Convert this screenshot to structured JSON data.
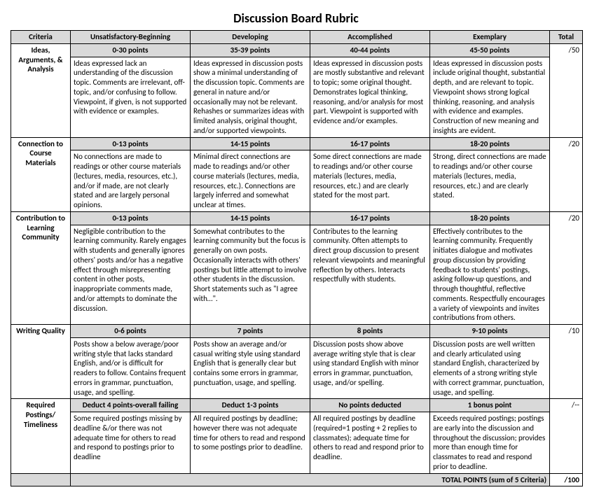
{
  "title": "Discussion Board Rubric",
  "headers": {
    "criteria": "Criteria",
    "l1": "Unsatisfactory-Beginning",
    "l2": "Developing",
    "l3": "Accomplished",
    "l4": "Exemplary",
    "total": "Total"
  },
  "rows": [
    {
      "criteria": "Ideas, Arguments, & Analysis",
      "pts": {
        "l1": "0-30 points",
        "l2": "35-39 points",
        "l3": "40-44 points",
        "l4": "45-50 points"
      },
      "desc": {
        "l1": "Ideas expressed lack an understanding of the discussion topic. Comments are irrelevant, off-topic, and/or confusing to follow. Viewpoint, if given, is not supported with evidence or examples.",
        "l2": "Ideas expressed in discussion posts show a minimal understanding of the discussion topic. Comments are general in nature and/or occasionally may not be relevant. Rehashes or summarizes ideas with limited analysis, original thought, and/or supported viewpoints.",
        "l3": "Ideas expressed in discussion posts are mostly substantive and relevant to topic; some original thought. Demonstrates logical thinking, reasoning, and/or analysis for most part. Viewpoint is supported with evidence and/or examples.",
        "l4": "Ideas expressed in discussion posts include original thought, substantial depth, and are relevant to topic. Viewpoint shows strong logical thinking, reasoning, and analysis with evidence and examples. Construction of new meaning and insights are evident."
      },
      "total": "/50"
    },
    {
      "criteria": "Connection to Course Materials",
      "pts": {
        "l1": "0-13 points",
        "l2": "14-15 points",
        "l3": "16-17 points",
        "l4": "18-20 points"
      },
      "desc": {
        "l1": "No connections are made to readings or other course materials (lectures, media, resources, etc.), and/or if made, are not clearly stated and are largely personal opinions.",
        "l2": "Minimal direct connections are made to readings and/or other course materials (lectures, media, resources, etc.). Connections are largely inferred and somewhat unclear at times.",
        "l3": "Some direct connections are made to readings and/or other course materials (lectures, media, resources, etc.) and are clearly stated for the most part.",
        "l4": "Strong, direct connections are made to readings and/or other course materials (lectures, media, resources, etc.) and are clearly stated."
      },
      "total": "/20"
    },
    {
      "criteria": "Contribution to Learning Community",
      "pts": {
        "l1": "0-13 points",
        "l2": "14-15 points",
        "l3": "16-17 points",
        "l4": "18-20 points"
      },
      "desc": {
        "l1": "Negligible contribution to the learning community. Rarely engages with students and generally ignores others' posts and/or has a negative effect through misrepresenting content in other posts, inappropriate comments made, and/or attempts to dominate the discussion.",
        "l2": "Somewhat contributes to the learning community but the focus is generally on own posts. Occasionally interacts with others' postings but little attempt to involve other students in the discussion. Short statements such as \"I agree with…\".",
        "l3": "Contributes to the learning community. Often attempts to direct group discussion to present relevant viewpoints and meaningful reflection by others. Interacts respectfully with students.",
        "l4": "Effectively contributes to the learning community. Frequently initiates dialogue and motivates group discussion by providing feedback to students' postings, asking follow-up questions, and through thoughtful, reflective comments. Respectfully encourages a variety of viewpoints and invites contributions from others."
      },
      "total": "/20"
    },
    {
      "criteria": "Writing Quality",
      "pts": {
        "l1": "0-6  points",
        "l2": "7 points",
        "l3": "8 points",
        "l4": "9-10 points"
      },
      "desc": {
        "l1": "Posts show a below average/poor writing style that lacks standard English, and/or is difficult for readers to follow. Contains frequent errors in grammar, punctuation, usage, and spelling.",
        "l2": "Posts show an average and/or casual writing style using standard English that is generally clear but contains some errors in grammar, punctuation, usage, and spelling.",
        "l3": "Discussion posts show above average writing style that is clear using standard English with minor errors in grammar, punctuation, usage, and/or spelling.",
        "l4": "Discussion posts are well written and clearly articulated using standard English, characterized by elements of a strong writing style with correct grammar, punctuation, usage, and spelling."
      },
      "total": "/10"
    },
    {
      "criteria": "Required Postings/ Timeliness",
      "pts": {
        "l1": "Deduct 4 points-overall failing",
        "l2": "Deduct 1-3 points",
        "l3": "No points deducted",
        "l4": "1 bonus point"
      },
      "desc": {
        "l1": "Some required postings missing by deadline &/or there was not adequate time for others to read and respond to postings prior to deadline",
        "l2": "All required postings by deadline; however there was not adequate time for others to read and respond to some postings prior to deadline.",
        "l3": "All required postings by deadline (required=1 posting + 2 replies to classmates); adequate time for others to read and respond prior to deadline.",
        "l4": "Exceeds required postings; postings are early into the discussion and throughout the discussion; provides more than enough time for classmates to read and respond prior to deadline."
      },
      "total": "/--"
    }
  ],
  "footer": {
    "label": "TOTAL POINTS (sum of 5 Criteria)",
    "total": "/100"
  },
  "style": {
    "header_bg": "#d9d9d9",
    "border_color": "#000000",
    "font_family": "Calibri",
    "title_fontsize": 18,
    "cell_fontsize": 11
  }
}
